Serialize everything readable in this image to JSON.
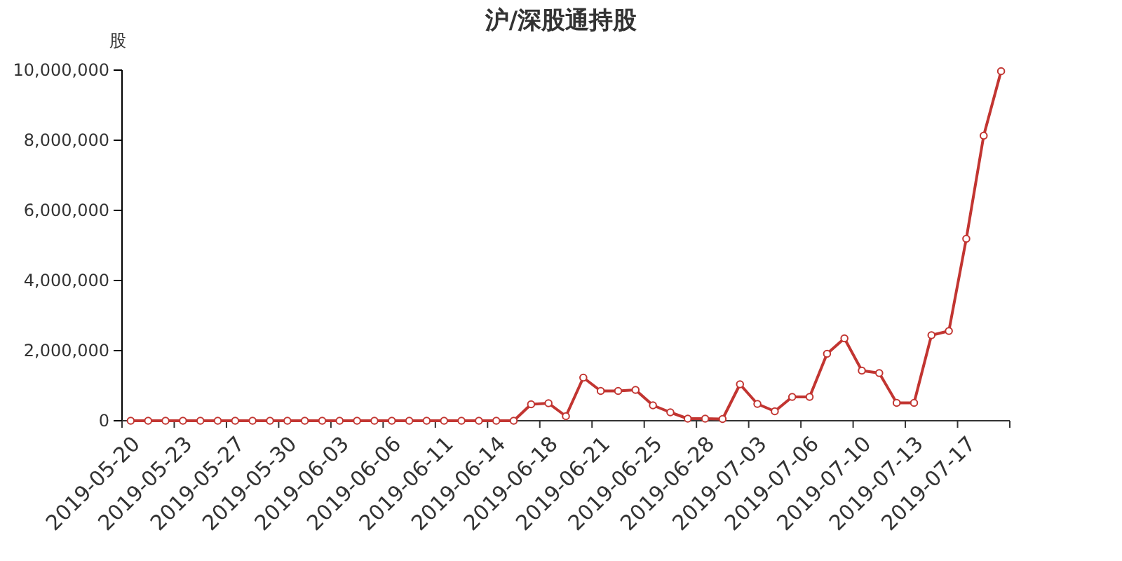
{
  "chart_data": {
    "type": "line",
    "title": "沪/深股通持股",
    "ylabel": "股",
    "categories": [
      "2019-05-20",
      null,
      null,
      "2019-05-23",
      null,
      null,
      "2019-05-27",
      null,
      null,
      "2019-05-30",
      null,
      null,
      "2019-06-03",
      null,
      null,
      "2019-06-06",
      null,
      null,
      "2019-06-11",
      null,
      null,
      "2019-06-14",
      null,
      null,
      "2019-06-18",
      null,
      null,
      "2019-06-21",
      null,
      null,
      "2019-06-25",
      null,
      null,
      "2019-06-28",
      null,
      null,
      "2019-07-03",
      null,
      null,
      "2019-07-06",
      null,
      null,
      "2019-07-10",
      null,
      null,
      "2019-07-13",
      null,
      null,
      "2019-07-17",
      null,
      null
    ],
    "series": [
      {
        "color": "#c23531",
        "values": [
          0,
          0,
          0,
          0,
          0,
          0,
          0,
          0,
          0,
          0,
          0,
          0,
          0,
          0,
          0,
          0,
          0,
          0,
          0,
          0,
          0,
          0,
          0,
          470000,
          500000,
          130000,
          1230000,
          850000,
          850000,
          880000,
          440000,
          240000,
          60000,
          60000,
          50000,
          1040000,
          480000,
          270000,
          680000,
          680000,
          1910000,
          2350000,
          1430000,
          1360000,
          510000,
          510000,
          2440000,
          2560000,
          5190000,
          8130000,
          9970000
        ]
      }
    ],
    "ylim": [
      0,
      10000000
    ],
    "yticks": [
      {
        "value": 0,
        "label": "0"
      },
      {
        "value": 2000000,
        "label": "2,000,000"
      },
      {
        "value": 4000000,
        "label": "4,000,000"
      },
      {
        "value": 6000000,
        "label": "6,000,000"
      },
      {
        "value": 8000000,
        "label": "8,000,000"
      },
      {
        "value": 10000000,
        "label": "10,000,000"
      }
    ],
    "marker": "circle",
    "grid": false
  }
}
